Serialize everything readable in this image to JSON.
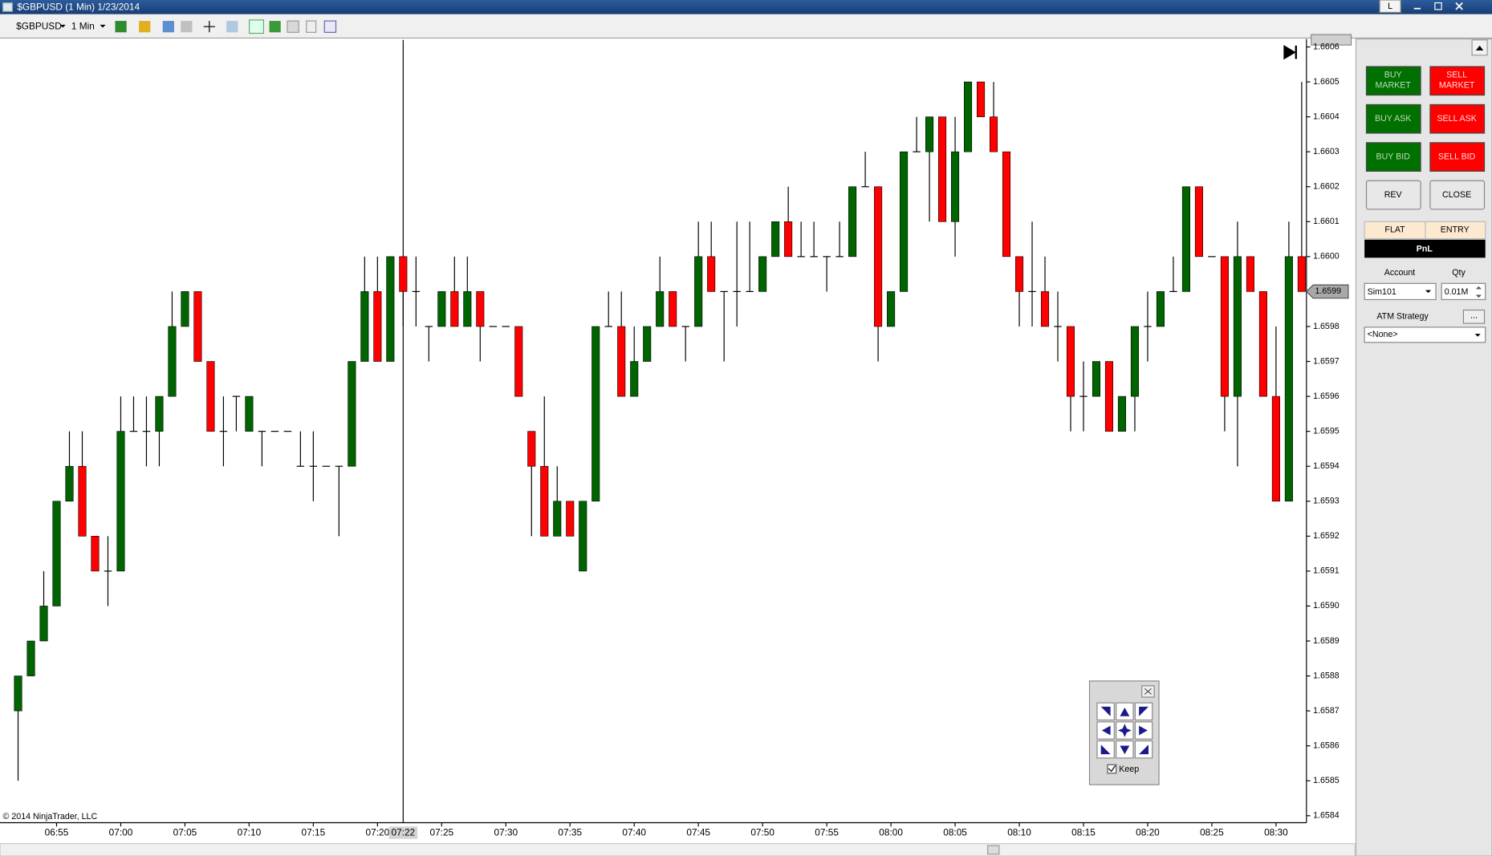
{
  "window": {
    "title": "$GBPUSD (1 Min)  1/23/2014",
    "layout_button": "L"
  },
  "toolbar": {
    "instrument": "$GBPUSD",
    "interval": "1 Min"
  },
  "chart_data": {
    "type": "candlestick",
    "x": [
      "06:52",
      "06:53",
      "06:54",
      "06:55",
      "06:56",
      "06:57",
      "06:58",
      "06:59",
      "07:00",
      "07:01",
      "07:02",
      "07:03",
      "07:04",
      "07:05",
      "07:06",
      "07:07",
      "07:08",
      "07:09",
      "07:10",
      "07:11",
      "07:12",
      "07:13",
      "07:14",
      "07:15",
      "07:16",
      "07:17",
      "07:18",
      "07:19",
      "07:20",
      "07:21",
      "07:22",
      "07:23",
      "07:24",
      "07:25",
      "07:26",
      "07:27",
      "07:28",
      "07:29",
      "07:30",
      "07:31",
      "07:32",
      "07:33",
      "07:34",
      "07:35",
      "07:36",
      "07:37",
      "07:38",
      "07:39",
      "07:40",
      "07:41",
      "07:42",
      "07:43",
      "07:44",
      "07:45",
      "07:46",
      "07:47",
      "07:48",
      "07:49",
      "07:50",
      "07:51",
      "07:52",
      "07:53",
      "07:54",
      "07:55",
      "07:56",
      "07:57",
      "07:58",
      "07:59",
      "08:00",
      "08:01",
      "08:02",
      "08:03",
      "08:04",
      "08:05",
      "08:06",
      "08:07",
      "08:08",
      "08:09",
      "08:10",
      "08:11",
      "08:12",
      "08:13",
      "08:14",
      "08:15",
      "08:16",
      "08:17",
      "08:18",
      "08:19",
      "08:20",
      "08:21",
      "08:22",
      "08:23",
      "08:24",
      "08:25",
      "08:26",
      "08:27",
      "08:28",
      "08:29",
      "08:30",
      "08:31",
      "08:32"
    ],
    "open": [
      1.6587,
      1.6588,
      1.6589,
      1.659,
      1.6593,
      1.6594,
      1.6592,
      1.6591,
      1.6591,
      1.6595,
      1.6595,
      1.6595,
      1.6596,
      1.6598,
      1.6599,
      1.6597,
      1.6595,
      1.6596,
      1.6595,
      1.6595,
      1.6595,
      1.6595,
      1.6594,
      1.6594,
      1.6594,
      1.6594,
      1.6594,
      1.6597,
      1.6599,
      1.6597,
      1.66,
      1.6599,
      1.6598,
      1.6598,
      1.6599,
      1.6598,
      1.6599,
      1.6598,
      1.6598,
      1.6598,
      1.6595,
      1.6594,
      1.6592,
      1.6593,
      1.6591,
      1.6593,
      1.6598,
      1.6598,
      1.6596,
      1.6597,
      1.6598,
      1.6599,
      1.6598,
      1.6598,
      1.66,
      1.6599,
      1.6599,
      1.6599,
      1.6599,
      1.66,
      1.6601,
      1.66,
      1.66,
      1.66,
      1.66,
      1.66,
      1.6602,
      1.6602,
      1.6598,
      1.6599,
      1.6603,
      1.6603,
      1.6604,
      1.6601,
      1.6603,
      1.6605,
      1.6604,
      1.6603,
      1.66,
      1.6599,
      1.6599,
      1.6598,
      1.6598,
      1.6596,
      1.6596,
      1.6597,
      1.6595,
      1.6596,
      1.6598,
      1.6598,
      1.6599,
      1.6599,
      1.6602,
      1.66,
      1.66,
      1.6596,
      1.66,
      1.6599,
      1.6596,
      1.6593,
      1.66
    ],
    "high": [
      1.6588,
      1.6589,
      1.6591,
      1.6593,
      1.6595,
      1.6595,
      1.6592,
      1.6592,
      1.6596,
      1.6596,
      1.6596,
      1.6596,
      1.6599,
      1.6599,
      1.6599,
      1.6597,
      1.6596,
      1.6596,
      1.6596,
      1.6595,
      1.6595,
      1.6595,
      1.6595,
      1.6595,
      1.6594,
      1.6594,
      1.6597,
      1.66,
      1.66,
      1.66,
      1.66,
      1.66,
      1.6598,
      1.6599,
      1.66,
      1.66,
      1.6599,
      1.6598,
      1.6598,
      1.6598,
      1.6595,
      1.6596,
      1.6594,
      1.6593,
      1.6593,
      1.6598,
      1.6599,
      1.6599,
      1.6598,
      1.6598,
      1.66,
      1.6599,
      1.6598,
      1.6601,
      1.6601,
      1.6599,
      1.6601,
      1.6601,
      1.66,
      1.6601,
      1.6602,
      1.6601,
      1.6601,
      1.66,
      1.6601,
      1.6602,
      1.6603,
      1.6602,
      1.6599,
      1.6603,
      1.6604,
      1.6604,
      1.6604,
      1.6604,
      1.6605,
      1.6605,
      1.6605,
      1.6603,
      1.66,
      1.6601,
      1.66,
      1.6599,
      1.6598,
      1.6597,
      1.6597,
      1.6597,
      1.6596,
      1.6598,
      1.6599,
      1.6599,
      1.66,
      1.6602,
      1.6602,
      1.66,
      1.66,
      1.6601,
      1.66,
      1.6599,
      1.6598,
      1.6601,
      1.6605
    ],
    "low": [
      1.6585,
      1.6588,
      1.6589,
      1.659,
      1.6593,
      1.6592,
      1.6591,
      1.659,
      1.6591,
      1.6595,
      1.6594,
      1.6594,
      1.6596,
      1.6598,
      1.6597,
      1.6595,
      1.6594,
      1.6595,
      1.6595,
      1.6594,
      1.6595,
      1.6595,
      1.6594,
      1.6593,
      1.6594,
      1.6592,
      1.6594,
      1.6597,
      1.6597,
      1.6597,
      1.6598,
      1.6598,
      1.6597,
      1.6598,
      1.6598,
      1.6598,
      1.6597,
      1.6598,
      1.6598,
      1.6596,
      1.6592,
      1.6592,
      1.6592,
      1.6592,
      1.6591,
      1.6593,
      1.6598,
      1.6596,
      1.6596,
      1.6597,
      1.6598,
      1.6598,
      1.6597,
      1.6598,
      1.6599,
      1.6597,
      1.6598,
      1.6599,
      1.6599,
      1.66,
      1.66,
      1.66,
      1.66,
      1.6599,
      1.66,
      1.66,
      1.6602,
      1.6597,
      1.6598,
      1.6599,
      1.6603,
      1.6601,
      1.6601,
      1.66,
      1.6603,
      1.6604,
      1.6603,
      1.66,
      1.6598,
      1.6598,
      1.6598,
      1.6597,
      1.6595,
      1.6595,
      1.6596,
      1.6595,
      1.6595,
      1.6595,
      1.6597,
      1.6598,
      1.6599,
      1.6599,
      1.66,
      1.66,
      1.6595,
      1.6594,
      1.6599,
      1.6596,
      1.6593,
      1.6593,
      1.6599
    ],
    "close": [
      1.6588,
      1.6589,
      1.659,
      1.6593,
      1.6594,
      1.6592,
      1.6591,
      1.6591,
      1.6595,
      1.6595,
      1.6595,
      1.6596,
      1.6598,
      1.6599,
      1.6597,
      1.6595,
      1.6595,
      1.6596,
      1.6596,
      1.6595,
      1.6595,
      1.6595,
      1.6594,
      1.6594,
      1.6594,
      1.6594,
      1.6597,
      1.6599,
      1.6597,
      1.66,
      1.6599,
      1.6599,
      1.6598,
      1.6599,
      1.6598,
      1.6599,
      1.6598,
      1.6598,
      1.6598,
      1.6596,
      1.6594,
      1.6592,
      1.6593,
      1.6592,
      1.6593,
      1.6598,
      1.6598,
      1.6596,
      1.6597,
      1.6598,
      1.6599,
      1.6598,
      1.6598,
      1.66,
      1.6599,
      1.6599,
      1.6599,
      1.6599,
      1.66,
      1.6601,
      1.66,
      1.66,
      1.66,
      1.66,
      1.66,
      1.6602,
      1.6602,
      1.6598,
      1.6599,
      1.6603,
      1.6603,
      1.6604,
      1.6601,
      1.6603,
      1.6605,
      1.6604,
      1.6603,
      1.66,
      1.6599,
      1.6599,
      1.6598,
      1.6598,
      1.6596,
      1.6596,
      1.6597,
      1.6595,
      1.6596,
      1.6598,
      1.6598,
      1.6599,
      1.6599,
      1.6602,
      1.66,
      1.66,
      1.6596,
      1.66,
      1.6599,
      1.6596,
      1.6593,
      1.66,
      1.6599
    ],
    "up_color": "#006400",
    "down_color": "#ff0000",
    "doji_color": "#000000",
    "ylim": [
      1.65838,
      1.66062
    ],
    "yticks": [
      1.6584,
      1.6585,
      1.6586,
      1.6587,
      1.6588,
      1.6589,
      {
        "value": 1.659,
        "label": "1.6590"
      },
      1.6591,
      1.6592,
      1.6593,
      1.6594,
      1.6595,
      1.6596,
      1.6597,
      1.6598,
      1.6599,
      {
        "value": 1.66,
        "label": "1.6600"
      },
      1.6601,
      1.6602,
      1.6603,
      1.6604,
      1.6605,
      1.6606
    ],
    "xticks": [
      "06:55",
      "07:00",
      "07:05",
      "07:10",
      "07:15",
      "07:20",
      "07:25",
      "07:30",
      "07:35",
      "07:40",
      "07:45",
      "07:50",
      "07:55",
      "08:00",
      "08:05",
      "08:10",
      "08:15",
      "08:20",
      "08:25",
      "08:30"
    ],
    "crosshair_x": "07:22",
    "last_price": 1.6599,
    "copyright": "© 2014 NinjaTrader, LLC"
  },
  "order_panel": {
    "buy_market": [
      "BUY",
      "MARKET"
    ],
    "sell_market": [
      "SELL",
      "MARKET"
    ],
    "buy_ask": "BUY ASK",
    "sell_ask": "SELL ASK",
    "buy_bid": "BUY BID",
    "sell_bid": "SELL BID",
    "rev": "REV",
    "close": "CLOSE",
    "flat": "FLAT",
    "entry": "ENTRY",
    "pnl": "PnL",
    "account_label": "Account",
    "qty_label": "Qty",
    "account": "Sim101",
    "qty": "0.01M",
    "atm_label": "ATM Strategy",
    "atm_more": "...",
    "atm_strategy": "<None>"
  },
  "nav_widget": {
    "keep": "Keep"
  }
}
